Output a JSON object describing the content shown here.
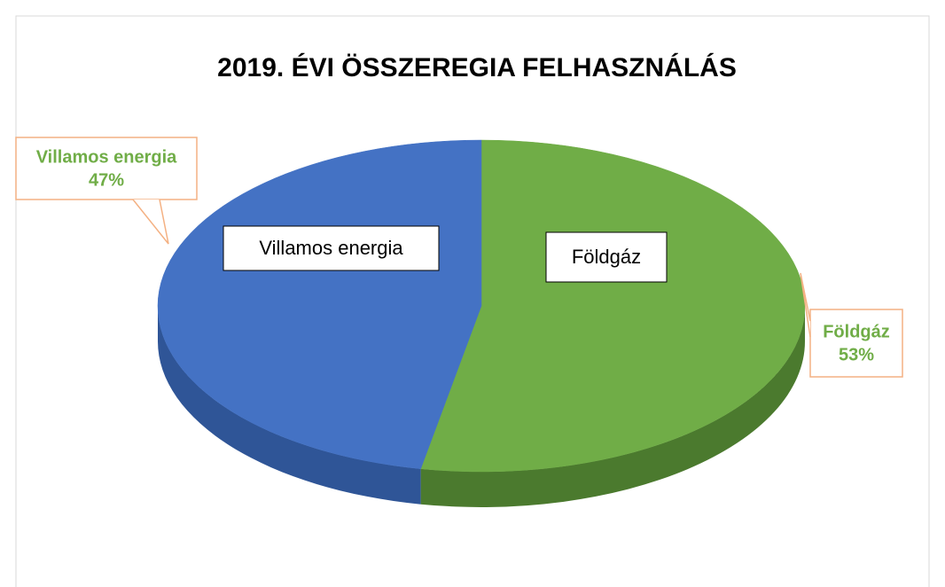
{
  "chart_data": {
    "type": "pie3d",
    "title": "2019. ÉVI ÖSSZEREGIA FELHASZNÁLÁS",
    "categories": [
      "Földgáz",
      "Villamos energia"
    ],
    "values": [
      53,
      47
    ],
    "value_labels": [
      "53%",
      "47%"
    ],
    "colors": [
      "#70ad47",
      "#4472c4"
    ],
    "side_colors": [
      "#4b7a2e",
      "#2f5597"
    ],
    "label_color": "#70ad47",
    "callout_border": "#f4b183"
  }
}
